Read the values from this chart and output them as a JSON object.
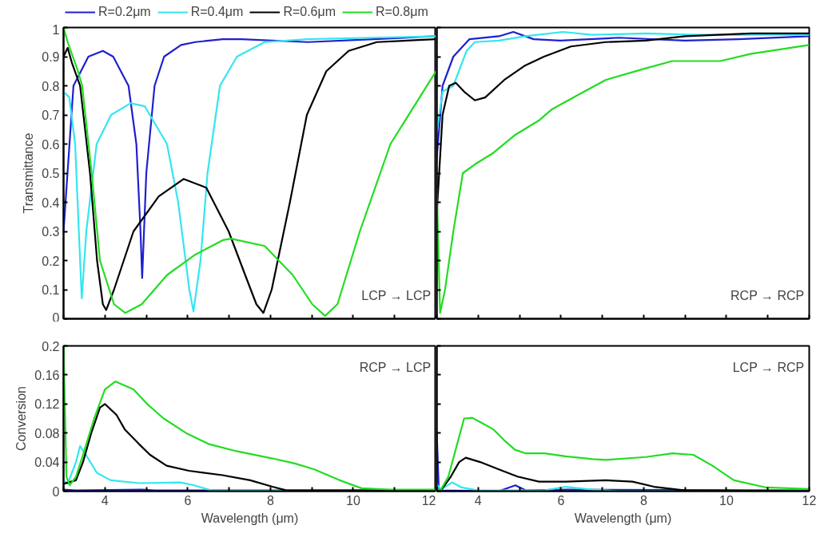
{
  "chart_data": [
    {
      "type": "line",
      "ylabel": "Transmittance",
      "annotations": [
        "LCP → LCP"
      ],
      "legend": "top",
      "tick_labels": "y",
      "xlim": [
        3,
        12
      ],
      "ylim": [
        0,
        1
      ],
      "xticks": [
        {
          "value": 3,
          "label": null
        },
        {
          "value": 4,
          "label": null
        },
        {
          "value": 5,
          "label": null
        },
        {
          "value": 6,
          "label": null
        },
        {
          "value": 7,
          "label": null
        },
        {
          "value": 8,
          "label": null
        },
        {
          "value": 9,
          "label": null
        },
        {
          "value": 10,
          "label": null
        },
        {
          "value": 11,
          "label": null
        },
        {
          "value": 12,
          "label": null
        }
      ],
      "yticks": [
        0,
        0.1,
        0.2,
        0.3,
        0.4,
        0.5,
        0.6,
        0.7,
        0.8,
        0.9,
        1
      ],
      "series": [
        {
          "name": "R=0.2μm",
          "color": "#1f1fcf",
          "x": [
            3,
            3.24,
            3.6,
            3.95,
            4.2,
            4.57,
            4.76,
            4.86,
            4.9,
            5.0,
            5.2,
            5.43,
            5.84,
            6.18,
            6.85,
            7.3,
            8.9,
            10.5,
            12
          ],
          "values": [
            0.3,
            0.8,
            0.9,
            0.92,
            0.9,
            0.8,
            0.6,
            0.3,
            0.14,
            0.5,
            0.8,
            0.9,
            0.94,
            0.95,
            0.96,
            0.96,
            0.95,
            0.96,
            0.97
          ]
        },
        {
          "name": "R=0.4μm",
          "color": "#33e6f0",
          "x": [
            3,
            3.14,
            3.28,
            3.37,
            3.44,
            3.55,
            3.8,
            4.15,
            4.62,
            4.96,
            5.5,
            5.77,
            6.04,
            6.14,
            6.31,
            6.48,
            6.78,
            7.19,
            7.86,
            8.88,
            12
          ],
          "values": [
            0.78,
            0.76,
            0.6,
            0.3,
            0.07,
            0.3,
            0.6,
            0.7,
            0.74,
            0.73,
            0.6,
            0.4,
            0.1,
            0.025,
            0.2,
            0.5,
            0.8,
            0.9,
            0.95,
            0.96,
            0.97
          ]
        },
        {
          "name": "R=0.6μm",
          "color": "#000000",
          "x": [
            3,
            3.1,
            3.2,
            3.4,
            3.64,
            3.81,
            3.95,
            4.03,
            4.22,
            4.69,
            5.3,
            5.9,
            6.45,
            6.99,
            7.39,
            7.66,
            7.83,
            8.03,
            8.47,
            8.88,
            9.35,
            9.89,
            10.57,
            12
          ],
          "values": [
            0.9,
            0.93,
            0.88,
            0.8,
            0.5,
            0.2,
            0.05,
            0.03,
            0.1,
            0.3,
            0.42,
            0.48,
            0.45,
            0.3,
            0.15,
            0.05,
            0.02,
            0.1,
            0.4,
            0.7,
            0.85,
            0.92,
            0.95,
            0.96
          ]
        },
        {
          "name": "R=0.8μm",
          "color": "#22dd22",
          "x": [
            3,
            3.1,
            3.35,
            3.45,
            3.68,
            3.88,
            4.22,
            4.49,
            4.89,
            5.5,
            6.18,
            6.85,
            7.05,
            7.86,
            8.54,
            9.01,
            9.32,
            9.62,
            10.16,
            10.9,
            12
          ],
          "values": [
            1.0,
            0.95,
            0.85,
            0.8,
            0.5,
            0.2,
            0.05,
            0.02,
            0.05,
            0.15,
            0.22,
            0.27,
            0.275,
            0.25,
            0.15,
            0.05,
            0.01,
            0.05,
            0.3,
            0.6,
            0.85
          ]
        }
      ]
    },
    {
      "type": "line",
      "annotations": [
        "RCP → RCP"
      ],
      "tick_labels": false,
      "xlim": [
        3,
        12
      ],
      "ylim": [
        0,
        1
      ],
      "xticks": [
        {
          "value": 3,
          "label": null
        },
        {
          "value": 4,
          "label": null
        },
        {
          "value": 5,
          "label": null
        },
        {
          "value": 6,
          "label": null
        },
        {
          "value": 7,
          "label": null
        },
        {
          "value": 8,
          "label": null
        },
        {
          "value": 9,
          "label": null
        },
        {
          "value": 10,
          "label": null
        },
        {
          "value": 11,
          "label": null
        },
        {
          "value": 12,
          "label": null
        }
      ],
      "yticks": [
        {
          "value": 0,
          "label": null
        },
        {
          "value": 0.1,
          "label": null
        },
        {
          "value": 0.2,
          "label": null
        },
        {
          "value": 0.3,
          "label": null
        },
        {
          "value": 0.4,
          "label": null
        },
        {
          "value": 0.5,
          "label": null
        },
        {
          "value": 0.6,
          "label": null
        },
        {
          "value": 0.7,
          "label": null
        },
        {
          "value": 0.8,
          "label": null
        },
        {
          "value": 0.9,
          "label": null
        },
        {
          "value": 1,
          "label": null
        }
      ],
      "series": [
        {
          "color": "#1f1fcf",
          "x": [
            3,
            3.14,
            3.4,
            3.79,
            4.5,
            4.85,
            5.34,
            5.98,
            7.4,
            9.0,
            10.3,
            12
          ],
          "values": [
            0.55,
            0.8,
            0.9,
            0.96,
            0.97,
            0.985,
            0.96,
            0.955,
            0.965,
            0.955,
            0.96,
            0.97
          ]
        },
        {
          "color": "#33e6f0",
          "x": [
            3,
            3.14,
            3.4,
            3.72,
            3.92,
            4.5,
            5.14,
            6.05,
            6.75,
            8.05,
            9.3,
            12
          ],
          "values": [
            0.64,
            0.78,
            0.8,
            0.92,
            0.95,
            0.955,
            0.97,
            0.985,
            0.975,
            0.98,
            0.975,
            0.975
          ]
        },
        {
          "color": "#000000",
          "x": [
            3,
            3.14,
            3.3,
            3.46,
            3.66,
            3.92,
            4.17,
            4.63,
            5.14,
            5.59,
            6.24,
            7.08,
            8.05,
            9.0,
            10.6,
            12
          ],
          "values": [
            0.36,
            0.7,
            0.8,
            0.81,
            0.78,
            0.75,
            0.76,
            0.82,
            0.87,
            0.9,
            0.935,
            0.95,
            0.955,
            0.97,
            0.98,
            0.98
          ]
        },
        {
          "color": "#22dd22",
          "x": [
            3,
            3.08,
            3.2,
            3.4,
            3.63,
            3.92,
            4.37,
            4.88,
            5.46,
            5.79,
            6.43,
            7.08,
            8.05,
            8.69,
            9.85,
            10.6,
            12
          ],
          "values": [
            0.45,
            0.02,
            0.1,
            0.3,
            0.5,
            0.53,
            0.57,
            0.63,
            0.68,
            0.72,
            0.77,
            0.82,
            0.86,
            0.885,
            0.885,
            0.91,
            0.94
          ]
        }
      ]
    },
    {
      "type": "line",
      "xlabel": "Wavelength (μm)",
      "ylabel": "Conversion",
      "annotations": [
        "RCP → LCP"
      ],
      "xlim": [
        3,
        12
      ],
      "ylim": [
        0,
        0.2
      ],
      "xticks": [
        {
          "value": 3,
          "label": null
        },
        4,
        {
          "value": 5,
          "label": null
        },
        6,
        {
          "value": 7,
          "label": null
        },
        8,
        {
          "value": 9,
          "label": null
        },
        10,
        {
          "value": 11,
          "label": null
        },
        12
      ],
      "yticks": [
        0,
        0.04,
        0.08,
        0.12,
        0.16,
        0.2
      ],
      "series": [
        {
          "color": "#1f1fcf",
          "x": [
            3,
            3.3,
            4.9,
            5.2,
            12
          ],
          "values": [
            0.002,
            0.001,
            0.002,
            0.001,
            0.001
          ]
        },
        {
          "color": "#33e6f0",
          "x": [
            3,
            3.1,
            3.3,
            3.4,
            3.54,
            3.81,
            4.14,
            4.82,
            5.83,
            6.16,
            6.57,
            12
          ],
          "values": [
            0.015,
            0.01,
            0.04,
            0.062,
            0.05,
            0.025,
            0.015,
            0.011,
            0.012,
            0.008,
            0.001,
            0
          ]
        },
        {
          "color": "#000000",
          "x": [
            3,
            3.3,
            3.47,
            3.67,
            3.88,
            4.0,
            4.28,
            4.48,
            4.82,
            5.09,
            5.49,
            6.03,
            6.84,
            7.51,
            8.05,
            8.39,
            12
          ],
          "values": [
            0.01,
            0.015,
            0.04,
            0.08,
            0.115,
            0.12,
            0.105,
            0.085,
            0.065,
            0.05,
            0.035,
            0.028,
            0.022,
            0.015,
            0.006,
            0.001,
            0.001
          ]
        },
        {
          "color": "#22dd22",
          "x": [
            3,
            3.07,
            3.15,
            3.3,
            3.47,
            3.74,
            4.0,
            4.25,
            4.69,
            5.02,
            5.42,
            5.96,
            6.5,
            7.18,
            8.05,
            8.59,
            9.06,
            9.67,
            10.2,
            10.9,
            12
          ],
          "values": [
            0.2,
            0.02,
            0.008,
            0.02,
            0.05,
            0.1,
            0.14,
            0.151,
            0.14,
            0.12,
            0.1,
            0.08,
            0.065,
            0.055,
            0.045,
            0.038,
            0.03,
            0.015,
            0.004,
            0.002,
            0.002
          ]
        }
      ]
    },
    {
      "type": "line",
      "xlabel": "Wavelength (μm)",
      "annotations": [
        "LCP → RCP"
      ],
      "tick_labels": "x",
      "xlim": [
        3,
        12
      ],
      "ylim": [
        0,
        0.2
      ],
      "xticks": [
        {
          "value": 3,
          "label": null
        },
        4,
        {
          "value": 5,
          "label": null
        },
        6,
        {
          "value": 7,
          "label": null
        },
        8,
        {
          "value": 9,
          "label": null
        },
        10,
        {
          "value": 11,
          "label": null
        },
        12
      ],
      "yticks": [
        {
          "value": 0,
          "label": null
        },
        {
          "value": 0.04,
          "label": null
        },
        {
          "value": 0.08,
          "label": null
        },
        {
          "value": 0.12,
          "label": null
        },
        {
          "value": 0.16,
          "label": null
        },
        {
          "value": 0.2,
          "label": null
        }
      ],
      "series": [
        {
          "color": "#1f1fcf",
          "x": [
            3,
            3.05,
            4.5,
            4.9,
            5.15,
            6.11,
            12
          ],
          "values": [
            0.08,
            0.001,
            0,
            0.008,
            0.001,
            0.002,
            0.001
          ]
        },
        {
          "color": "#33e6f0",
          "x": [
            3,
            3.1,
            3.37,
            3.6,
            4.0,
            5.6,
            6.11,
            6.76,
            7.4,
            12
          ],
          "values": [
            0.01,
            0.002,
            0.012,
            0.005,
            0.001,
            0.001,
            0.006,
            0.002,
            0,
            0
          ]
        },
        {
          "color": "#000000",
          "x": [
            3,
            3.1,
            3.34,
            3.54,
            3.7,
            4.05,
            4.5,
            4.95,
            5.47,
            6.12,
            7.08,
            7.73,
            8.25,
            9.0,
            12
          ],
          "values": [
            0.002,
            0.001,
            0.02,
            0.04,
            0.046,
            0.04,
            0.03,
            0.02,
            0.013,
            0.013,
            0.015,
            0.013,
            0.006,
            0.001,
            0
          ]
        },
        {
          "color": "#22dd22",
          "x": [
            3,
            3.08,
            3.28,
            3.47,
            3.66,
            3.86,
            4.05,
            4.37,
            4.63,
            4.89,
            5.15,
            5.6,
            6.11,
            6.76,
            7.08,
            8.05,
            8.7,
            9.2,
            9.66,
            10.18,
            10.96,
            12
          ],
          "values": [
            0.005,
            0,
            0.02,
            0.06,
            0.1,
            0.101,
            0.095,
            0.085,
            0.07,
            0.057,
            0.052,
            0.052,
            0.048,
            0.044,
            0.043,
            0.047,
            0.052,
            0.05,
            0.035,
            0.015,
            0.005,
            0.003
          ]
        }
      ]
    }
  ]
}
